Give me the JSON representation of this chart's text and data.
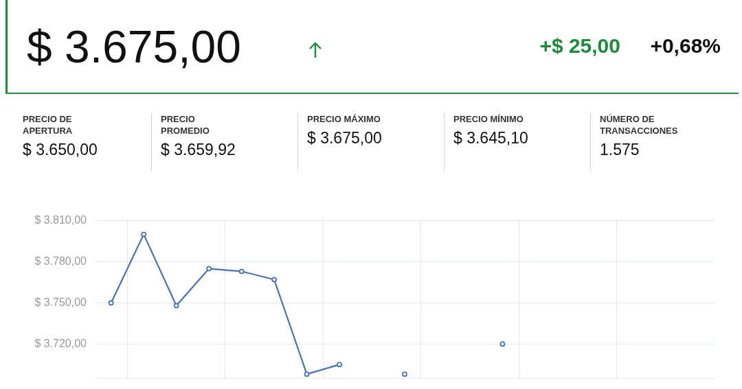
{
  "chart_data": {
    "type": "line",
    "title": "$ 3.675,00",
    "annotations": [
      "+$ 25,00",
      "+0,68%",
      "PRECIO DE APERTURA",
      "$ 3.650,00",
      "PRECIO PROMEDIO",
      "$ 3.659,92",
      "PRECIO MÁXIMO",
      "$ 3.675,00",
      "PRECIO MÍNIMO",
      "$ 3.645,10",
      "NÚMERO DE TRANSACCIONES",
      "1.575"
    ],
    "categories": [
      null,
      null,
      null,
      null,
      null,
      null,
      null,
      null,
      null,
      null,
      null,
      null,
      null,
      null,
      null,
      null,
      null,
      null,
      null
    ],
    "series": [
      {
        "color": "#4a72b8",
        "values": [
          3750,
          3800,
          3748,
          3775,
          3773,
          3767,
          3698,
          3705,
          null,
          3698,
          null,
          null,
          3720,
          null,
          null,
          null,
          null,
          null,
          null
        ]
      }
    ],
    "ylim": [
      3695,
      3810
    ],
    "yticks": [
      {
        "value": 3720,
        "label": "$ 3.720,00"
      },
      {
        "value": 3750,
        "label": "$ 3.750,00"
      },
      {
        "value": 3780,
        "label": "$ 3.780,00"
      },
      {
        "value": 3810,
        "label": "$ 3.810,00"
      }
    ],
    "grid": true,
    "legend": false,
    "marker": "circle",
    "line_style": "solid",
    "tick_labels": "y"
  }
}
